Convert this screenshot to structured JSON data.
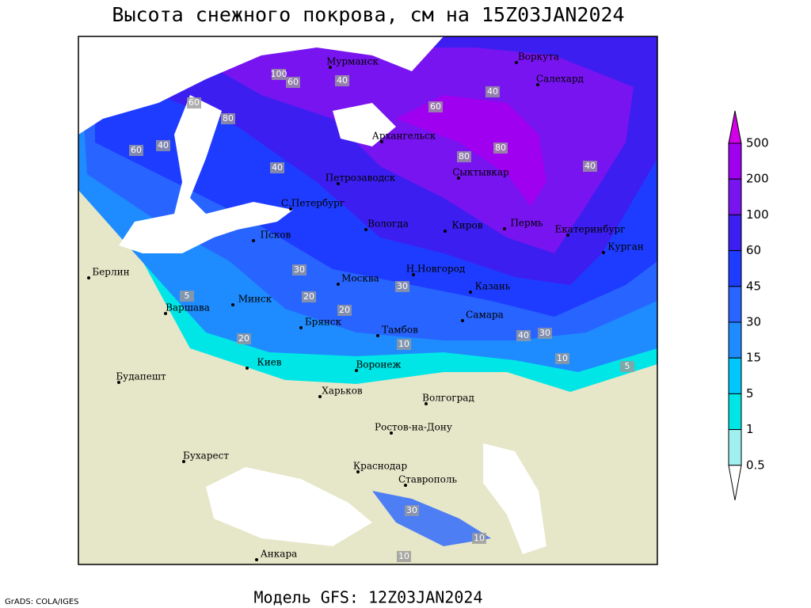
{
  "header": {
    "title": "Высота снежного покрова, см на 15Z03JAN2024"
  },
  "footer": {
    "model": "Модель GFS: 12Z03JAN2024",
    "credit": "GrADS: COLA/IGES"
  },
  "legend": {
    "levels": [
      500,
      200,
      100,
      60,
      45,
      30,
      15,
      5,
      1,
      0.5
    ],
    "colors": [
      "#d200e6",
      "#a000f0",
      "#7814f0",
      "#3c1ef0",
      "#1e3cff",
      "#2864ff",
      "#1e8cff",
      "#00c8ff",
      "#00e6e6",
      "#a0f0f0",
      "#ffffff"
    ]
  },
  "cities": [
    "Мурманск",
    "Воркута",
    "Салехард",
    "Архангельск",
    "Петрозаводск",
    "Сыктывкар",
    "С.Петербург",
    "Вологда",
    "Киров",
    "Пермь",
    "Екатеринбург",
    "Курган",
    "Псков",
    "Берлин",
    "Москва",
    "Н.Новгород",
    "Казань",
    "Минск",
    "Варшава",
    "Брянск",
    "Тамбов",
    "Самара",
    "Киев",
    "Воронеж",
    "Будапешт",
    "Харьков",
    "Волгоград",
    "Ростов-на-Дону",
    "Бухарест",
    "Краснодар",
    "Ставрополь",
    "Анкара"
  ],
  "contour_labels": [
    100,
    60,
    40,
    80,
    60,
    40,
    60,
    40,
    80,
    60,
    40,
    80,
    40,
    30,
    20,
    20,
    30,
    10,
    5,
    20,
    40,
    30,
    10,
    5,
    30,
    10,
    10
  ]
}
